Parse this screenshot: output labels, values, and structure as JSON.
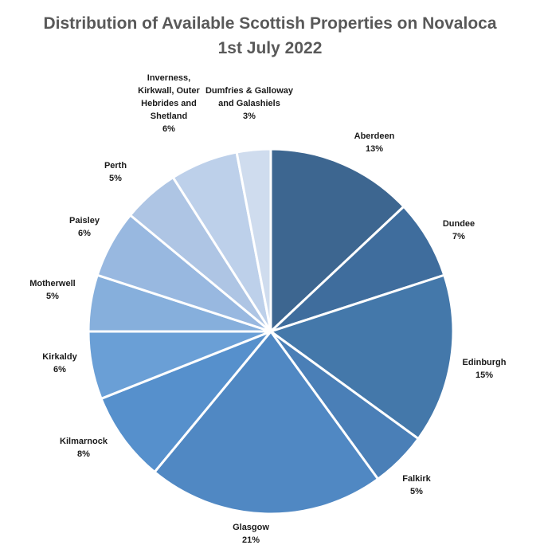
{
  "chart_data": {
    "type": "pie",
    "title": "Distribution of Available Scottish Properties on Novaloca",
    "subtitle": "1st July 2022",
    "categories": [
      "Aberdeen",
      "Dundee",
      "Edinburgh",
      "Falkirk",
      "Glasgow",
      "Kilmarnock",
      "Kirkaldy",
      "Motherwell",
      "Paisley",
      "Perth",
      "Inverness, Kirkwall, Outer Hebrides and Shetland",
      "Dumfries & Galloway and Galashiels"
    ],
    "values": [
      13,
      7,
      15,
      5,
      21,
      8,
      6,
      5,
      6,
      5,
      6,
      3
    ],
    "value_labels": [
      "13%",
      "7%",
      "15%",
      "5%",
      "21%",
      "8%",
      "6%",
      "5%",
      "6%",
      "5%",
      "6%",
      "3%"
    ],
    "label_lines": [
      [
        "Aberdeen"
      ],
      [
        "Dundee"
      ],
      [
        "Edinburgh"
      ],
      [
        "Falkirk"
      ],
      [
        "Glasgow"
      ],
      [
        "Kilmarnock"
      ],
      [
        "Kirkaldy"
      ],
      [
        "Motherwell"
      ],
      [
        "Paisley"
      ],
      [
        "Perth"
      ],
      [
        "Inverness,",
        "Kirkwall, Outer",
        "Hebrides and",
        "Shetland"
      ],
      [
        "Dumfries & Galloway",
        "and Galashiels"
      ]
    ],
    "colors": [
      "#3d6690",
      "#3f6d9d",
      "#4478aa",
      "#4a7fb7",
      "#5088c3",
      "#5690cc",
      "#6a9fd6",
      "#86afdc",
      "#98b8e0",
      "#aec5e4",
      "#bdd0ea",
      "#cfdcee"
    ],
    "legend": "none"
  }
}
